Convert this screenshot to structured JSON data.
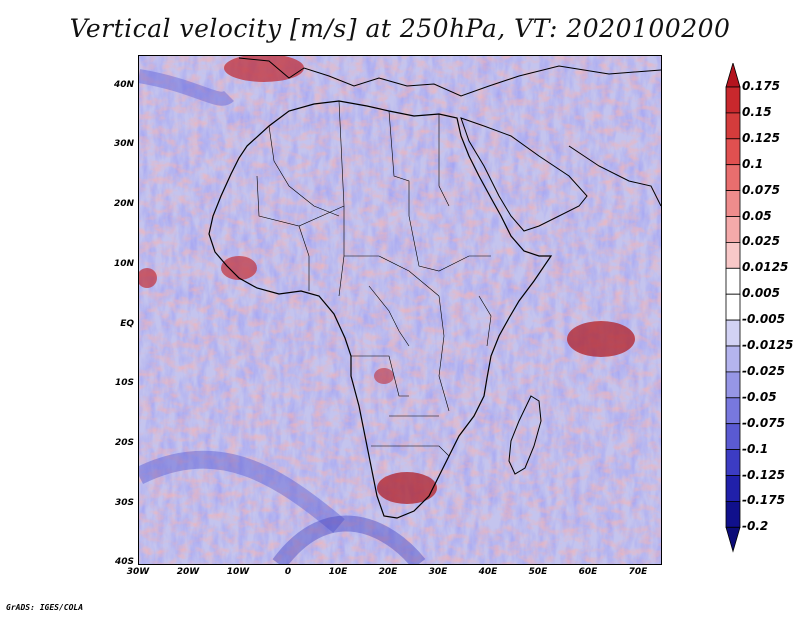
{
  "title": "Vertical velocity [m/s] at 250hPa, VT: 2020100200",
  "credit": "GrADS: IGES/COLA",
  "y_axis_labels": [
    "40N",
    "30N",
    "20N",
    "10N",
    "EQ",
    "10S",
    "20S",
    "30S",
    "40S"
  ],
  "x_axis_labels": [
    "30W",
    "20W",
    "10W",
    "0",
    "10E",
    "20E",
    "30E",
    "40E",
    "50E",
    "60E",
    "70E"
  ],
  "colorbar": {
    "levels": [
      "0.175",
      "0.15",
      "0.125",
      "0.1",
      "0.075",
      "0.05",
      "0.025",
      "0.0125",
      "0.005",
      "-0.005",
      "-0.0125",
      "-0.025",
      "-0.05",
      "-0.075",
      "-0.1",
      "-0.125",
      "-0.175",
      "-0.2"
    ],
    "colors": [
      "#b4141e",
      "#c8282d",
      "#d43c3c",
      "#e05050",
      "#e86e6e",
      "#ee8c8c",
      "#f4aaaa",
      "#f8c8c8",
      "#ffffff",
      "#ffffff",
      "#d2d2f4",
      "#b4b4ee",
      "#9696e6",
      "#7878de",
      "#5a5ad2",
      "#3c3cc3",
      "#2020aa",
      "#10108c",
      "#0c0c78"
    ]
  }
}
